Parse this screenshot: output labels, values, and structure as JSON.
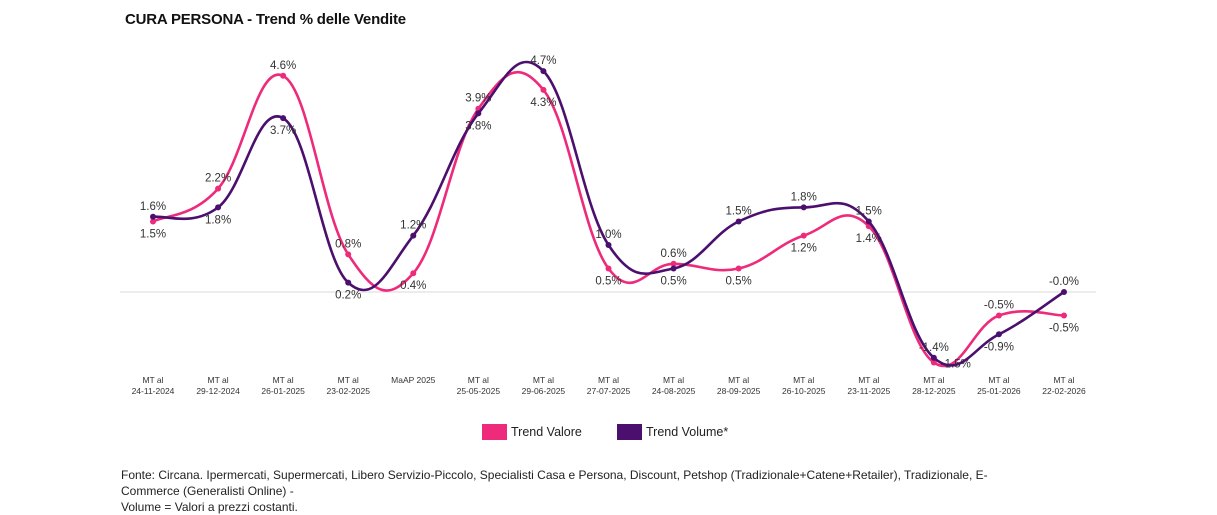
{
  "title": "CURA PERSONA - Trend % delle Vendite",
  "chart_data": {
    "type": "line",
    "title": "CURA PERSONA - Trend % delle Vendite",
    "categories": [
      [
        "MT al",
        "24-11-2024"
      ],
      [
        "MT al",
        "29-12-2024"
      ],
      [
        "MT al",
        "26-01-2025"
      ],
      [
        "MT al",
        "23-02-2025"
      ],
      [
        "MaAP 2025",
        ""
      ],
      [
        "MT al",
        "25-05-2025"
      ],
      [
        "MT al",
        "29-06-2025"
      ],
      [
        "MT al",
        "27-07-2025"
      ],
      [
        "MT al",
        "24-08-2025"
      ],
      [
        "MT al",
        "28-09-2025"
      ],
      [
        "MT al",
        "26-10-2025"
      ],
      [
        "MT al",
        "23-11-2025"
      ],
      [
        "MT al",
        "28-12-2025"
      ],
      [
        "MT al",
        "25-01-2026"
      ],
      [
        "MT al",
        "22-02-2026"
      ]
    ],
    "series": [
      {
        "name": "Trend Valore",
        "color": "#ee2a7b",
        "values": [
          1.5,
          2.2,
          4.6,
          0.8,
          0.4,
          3.9,
          4.3,
          0.5,
          0.6,
          0.5,
          1.2,
          1.4,
          -1.5,
          -0.5,
          -0.5
        ],
        "labels": [
          "1.5%",
          "2.2%",
          "4.6%",
          "0.8%",
          "0.4%",
          "3.9%",
          "4.3%",
          "0.5%",
          "0.6%",
          "0.5%",
          "1.2%",
          "1.4%",
          "-1.5%",
          "-0.5%",
          "-0.5%"
        ]
      },
      {
        "name": "Trend Volume*",
        "color": "#4b0f6e",
        "values": [
          1.6,
          1.8,
          3.7,
          0.2,
          1.2,
          3.8,
          4.7,
          1.0,
          0.5,
          1.5,
          1.8,
          1.5,
          -1.4,
          -0.9,
          -0.0
        ],
        "labels": [
          "1.6%",
          "1.8%",
          "3.7%",
          "0.2%",
          "1.2%",
          "3.8%",
          "4.7%",
          "1.0%",
          "0.5%",
          "1.5%",
          "1.8%",
          "1.5%",
          "-1.4%",
          "-0.9%",
          "-0.0%"
        ]
      }
    ],
    "grid": false,
    "legend": "bottom-center"
  },
  "legend": {
    "valore": "Trend Valore",
    "volume": "Trend Volume*"
  },
  "footnote": {
    "line1": "Fonte: Circana. Ipermercati, Supermercati, Libero Servizio-Piccolo, Specialisti Casa e Persona, Discount, Petshop (Tradizionale+Catene+Retailer), Tradizionale, E-Commerce (Generalisti Online) -",
    "line2": "Volume = Valori a prezzi costanti."
  }
}
